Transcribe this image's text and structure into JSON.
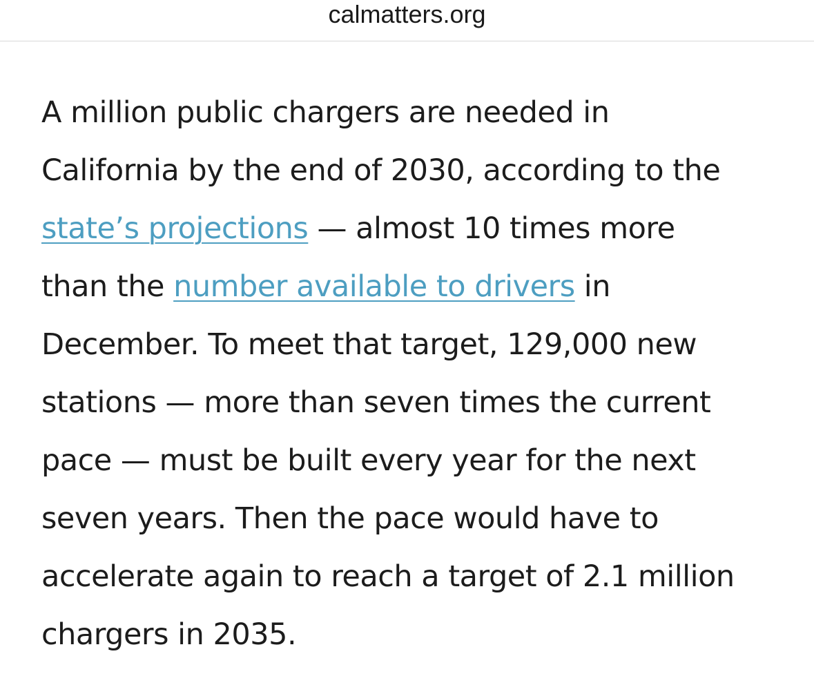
{
  "browser": {
    "url": "calmatters.org"
  },
  "article": {
    "line1": "A million public chargers are needed in",
    "line2": "California by the end of 2030, according to the",
    "link_projections": "state’s projections",
    "line3_rest": " — almost 10 times more",
    "line4_start": "than the ",
    "link_available": "number available to drivers",
    "line4_end": " in",
    "line5": "December. To meet that target, 129,000 new",
    "line6": "stations — more than seven times the current",
    "line7": "pace — must be built every year for the next",
    "line8": "seven years. Then the pace would have to",
    "line9": "accelerate again to reach a target of 2.1 million",
    "line10": "chargers in 2035."
  },
  "colors": {
    "link": "#4d9ec1",
    "text": "#1c1c1c"
  }
}
